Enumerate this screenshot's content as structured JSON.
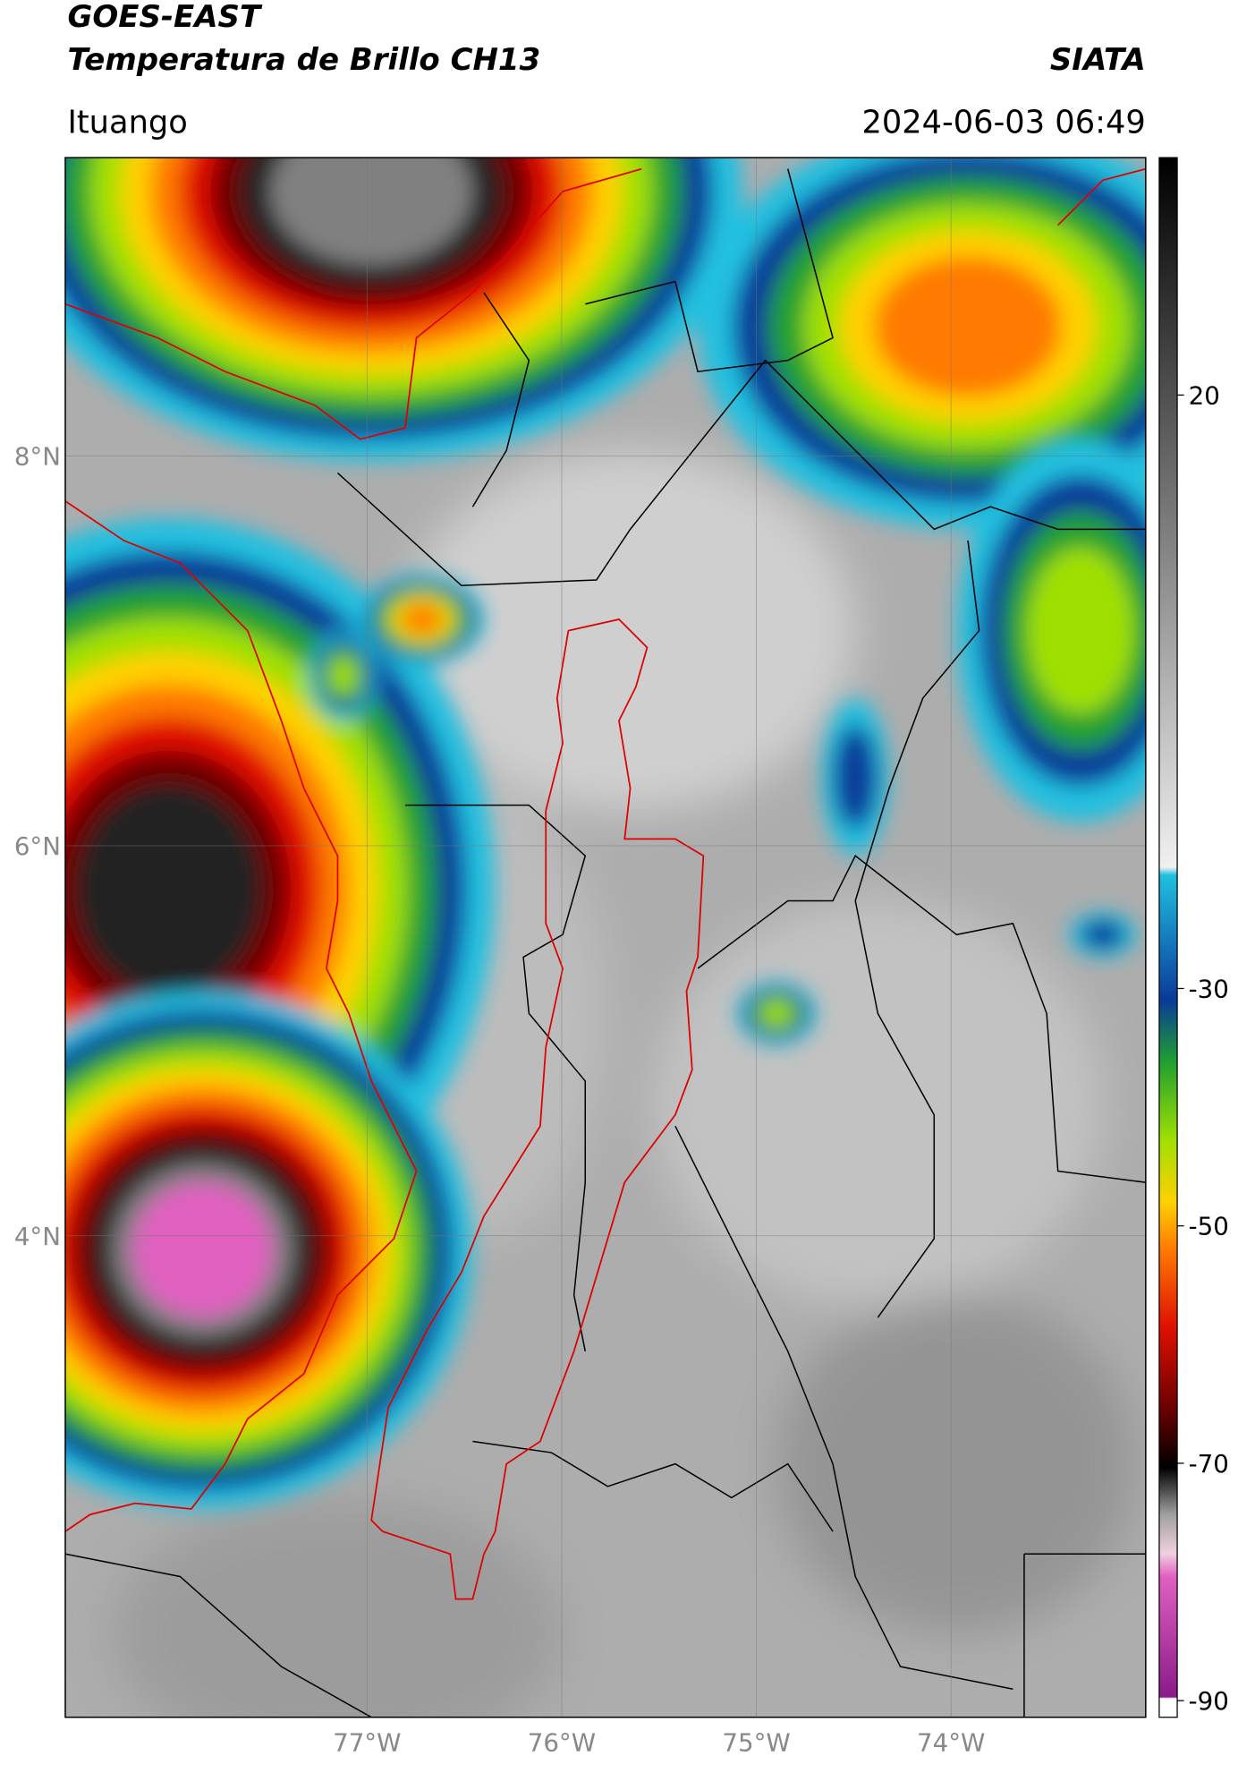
{
  "header": {
    "title_line1": "GOES-EAST",
    "title_line2": "Temperatura de Brillo CH13",
    "brand": "SIATA",
    "location": "Ituango",
    "datetime": "2024-06-03 06:49"
  },
  "map": {
    "lonlim": [
      -78.55,
      -73.0
    ],
    "latlim": [
      1.53,
      9.53
    ],
    "lon_ticks": [
      {
        "value": -77,
        "label": "77°W"
      },
      {
        "value": -76,
        "label": "76°W"
      },
      {
        "value": -75,
        "label": "75°W"
      },
      {
        "value": -74,
        "label": "74°W"
      }
    ],
    "lat_ticks": [
      {
        "value": 8,
        "label": "8°N"
      },
      {
        "value": 6,
        "label": "6°N"
      },
      {
        "value": 4,
        "label": "4°N"
      }
    ],
    "grid": true
  },
  "colorbar": {
    "lim": [
      -91.4,
      40
    ],
    "ticks": [
      20,
      -30,
      -50,
      -70,
      -90
    ]
  }
}
